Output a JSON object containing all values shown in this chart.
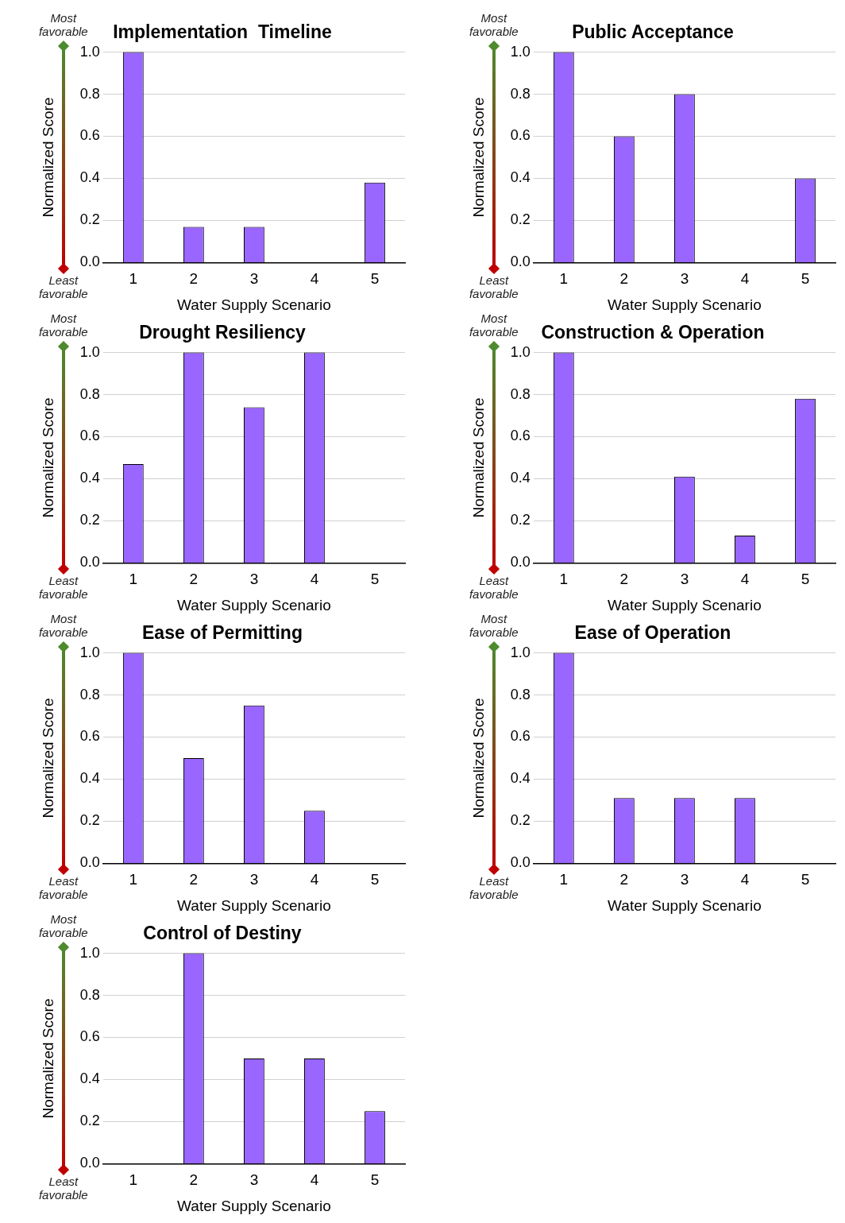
{
  "chart_data": [
    {
      "type": "bar",
      "title": "Implementation  Timeline",
      "xlabel": "Water Supply Scenario",
      "ylabel": "Normalized Score",
      "categories": [
        "1",
        "2",
        "3",
        "4",
        "5"
      ],
      "values": [
        1.0,
        0.17,
        0.17,
        0,
        0.38
      ],
      "color": "#9966ff",
      "ylim": [
        0,
        1
      ],
      "yticks": [
        {
          "value": 0,
          "label": "0.0"
        },
        {
          "value": 0.2,
          "label": "0.2"
        },
        {
          "value": 0.4,
          "label": "0.4"
        },
        {
          "value": 0.6,
          "label": "0.6"
        },
        {
          "value": 0.8,
          "label": "0.8"
        },
        {
          "value": 1,
          "label": "1.0"
        }
      ],
      "grid": "y",
      "legend": false,
      "annotations": [
        "Most favorable",
        "Least favorable"
      ]
    },
    {
      "type": "bar",
      "title": "Public Acceptance",
      "xlabel": "Water Supply Scenario",
      "ylabel": "Normalized Score",
      "categories": [
        "1",
        "2",
        "3",
        "4",
        "5"
      ],
      "values": [
        1.0,
        0.6,
        0.8,
        0,
        0.4
      ],
      "color": "#9966ff",
      "ylim": [
        0,
        1
      ],
      "yticks": [
        {
          "value": 0,
          "label": "0.0"
        },
        {
          "value": 0.2,
          "label": "0.2"
        },
        {
          "value": 0.4,
          "label": "0.4"
        },
        {
          "value": 0.6,
          "label": "0.6"
        },
        {
          "value": 0.8,
          "label": "0.8"
        },
        {
          "value": 1,
          "label": "1.0"
        }
      ],
      "grid": "y",
      "legend": false,
      "annotations": [
        "Most favorable",
        "Least favorable"
      ]
    },
    {
      "type": "bar",
      "title": "Drought Resiliency",
      "xlabel": "Water Supply Scenario",
      "ylabel": "Normalized Score",
      "categories": [
        "1",
        "2",
        "3",
        "4",
        "5"
      ],
      "values": [
        0.47,
        1.0,
        0.74,
        1.0,
        0
      ],
      "color": "#9966ff",
      "ylim": [
        0,
        1
      ],
      "yticks": [
        {
          "value": 0,
          "label": "0.0"
        },
        {
          "value": 0.2,
          "label": "0.2"
        },
        {
          "value": 0.4,
          "label": "0.4"
        },
        {
          "value": 0.6,
          "label": "0.6"
        },
        {
          "value": 0.8,
          "label": "0.8"
        },
        {
          "value": 1,
          "label": "1.0"
        }
      ],
      "grid": "y",
      "legend": false,
      "annotations": [
        "Most favorable",
        "Least favorable"
      ]
    },
    {
      "type": "bar",
      "title": "Construction & Operation",
      "xlabel": "Water Supply Scenario",
      "ylabel": "Normalized Score",
      "categories": [
        "1",
        "2",
        "3",
        "4",
        "5"
      ],
      "values": [
        1.0,
        0,
        0.41,
        0.13,
        0.78
      ],
      "color": "#9966ff",
      "ylim": [
        0,
        1
      ],
      "yticks": [
        {
          "value": 0,
          "label": "0.0"
        },
        {
          "value": 0.2,
          "label": "0.2"
        },
        {
          "value": 0.4,
          "label": "0.4"
        },
        {
          "value": 0.6,
          "label": "0.6"
        },
        {
          "value": 0.8,
          "label": "0.8"
        },
        {
          "value": 1,
          "label": "1.0"
        }
      ],
      "grid": "y",
      "legend": false,
      "annotations": [
        "Most favorable",
        "Least favorable"
      ]
    },
    {
      "type": "bar",
      "title": "Ease of Permitting",
      "xlabel": "Water Supply Scenario",
      "ylabel": "Normalized Score",
      "categories": [
        "1",
        "2",
        "3",
        "4",
        "5"
      ],
      "values": [
        1.0,
        0.5,
        0.75,
        0.25,
        0
      ],
      "color": "#9966ff",
      "ylim": [
        0,
        1
      ],
      "yticks": [
        {
          "value": 0,
          "label": "0.0"
        },
        {
          "value": 0.2,
          "label": "0.2"
        },
        {
          "value": 0.4,
          "label": "0.4"
        },
        {
          "value": 0.6,
          "label": "0.6"
        },
        {
          "value": 0.8,
          "label": "0.8"
        },
        {
          "value": 1,
          "label": "1.0"
        }
      ],
      "grid": "y",
      "legend": false,
      "annotations": [
        "Most favorable",
        "Least favorable"
      ]
    },
    {
      "type": "bar",
      "title": "Ease of Operation",
      "xlabel": "Water Supply Scenario",
      "ylabel": "Normalized Score",
      "categories": [
        "1",
        "2",
        "3",
        "4",
        "5"
      ],
      "values": [
        1.0,
        0.31,
        0.31,
        0.31,
        0
      ],
      "color": "#9966ff",
      "ylim": [
        0,
        1
      ],
      "yticks": [
        {
          "value": 0,
          "label": "0.0"
        },
        {
          "value": 0.2,
          "label": "0.2"
        },
        {
          "value": 0.4,
          "label": "0.4"
        },
        {
          "value": 0.6,
          "label": "0.6"
        },
        {
          "value": 0.8,
          "label": "0.8"
        },
        {
          "value": 1,
          "label": "1.0"
        }
      ],
      "grid": "y",
      "legend": false,
      "annotations": [
        "Most favorable",
        "Least favorable"
      ]
    },
    {
      "type": "bar",
      "title": "Control of Destiny",
      "xlabel": "Water Supply Scenario",
      "ylabel": "Normalized Score",
      "categories": [
        "1",
        "2",
        "3",
        "4",
        "5"
      ],
      "values": [
        0,
        1.0,
        0.5,
        0.5,
        0.25
      ],
      "color": "#9966ff",
      "ylim": [
        0,
        1
      ],
      "yticks": [
        {
          "value": 0,
          "label": "0.0"
        },
        {
          "value": 0.2,
          "label": "0.2"
        },
        {
          "value": 0.4,
          "label": "0.4"
        },
        {
          "value": 0.6,
          "label": "0.6"
        },
        {
          "value": 0.8,
          "label": "0.8"
        },
        {
          "value": 1,
          "label": "1.0"
        }
      ],
      "grid": "y",
      "legend": false,
      "annotations": [
        "Most favorable",
        "Least favorable"
      ]
    }
  ]
}
